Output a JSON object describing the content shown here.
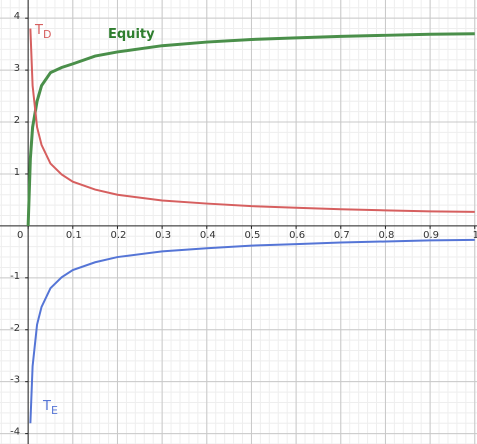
{
  "chart_data": {
    "type": "line",
    "x": [
      0,
      0.005,
      0.01,
      0.02,
      0.03,
      0.05,
      0.075,
      0.1,
      0.15,
      0.2,
      0.3,
      0.4,
      0.5,
      0.6,
      0.7,
      0.8,
      0.9,
      1
    ],
    "series": [
      {
        "name": "Equity",
        "color": "#4a8f4a",
        "values": [
          0,
          1.3,
          1.9,
          2.4,
          2.7,
          2.95,
          3.05,
          3.12,
          3.27,
          3.35,
          3.47,
          3.54,
          3.59,
          3.62,
          3.65,
          3.67,
          3.69,
          3.7
        ]
      },
      {
        "name": "T_D",
        "color": "#d65f5f",
        "values": [
          null,
          3.8,
          2.7,
          1.9,
          1.56,
          1.2,
          0.99,
          0.85,
          0.7,
          0.6,
          0.49,
          0.43,
          0.38,
          0.35,
          0.32,
          0.3,
          0.28,
          0.27
        ]
      },
      {
        "name": "T_E",
        "color": "#5575d6",
        "values": [
          null,
          -3.8,
          -2.7,
          -1.9,
          -1.56,
          -1.2,
          -0.99,
          -0.85,
          -0.7,
          -0.6,
          -0.49,
          -0.43,
          -0.38,
          -0.35,
          -0.32,
          -0.3,
          -0.28,
          -0.27
        ]
      }
    ],
    "annotations": [
      {
        "text": "Equity",
        "color": "#2e7d2e"
      },
      {
        "text": "T",
        "sub": "D",
        "color": "#d65f5f"
      },
      {
        "text": "T",
        "sub": "E",
        "color": "#5575d6"
      }
    ],
    "xlim": [
      -0.063,
      1.005
    ],
    "ylim": [
      -4.2,
      4.35
    ],
    "xticks": [
      0,
      0.1,
      0.2,
      0.3,
      0.4,
      0.5,
      0.6,
      0.7,
      0.8,
      0.9,
      1
    ],
    "yticks": [
      -4,
      -3,
      -2,
      -1,
      1,
      2,
      3,
      4
    ],
    "grid": true,
    "minor_grid": 5
  }
}
